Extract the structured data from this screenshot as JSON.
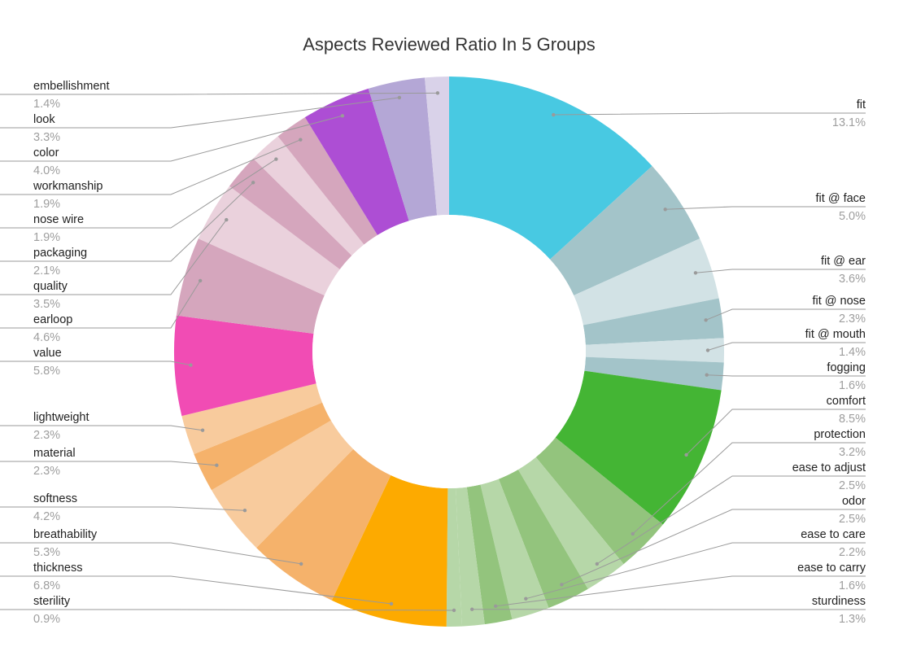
{
  "chart_data": {
    "type": "pie",
    "donut": true,
    "title": "Aspects Reviewed Ratio In 5 Groups",
    "slices": [
      {
        "label": "fit",
        "value": 13.1,
        "display": "13.1%",
        "color": "#48c9e2"
      },
      {
        "label": "fit @ face",
        "value": 5.0,
        "display": "5.0%",
        "color": "#a3c4c9"
      },
      {
        "label": "fit @ ear",
        "value": 3.6,
        "display": "3.6%",
        "color": "#d2e2e5"
      },
      {
        "label": "fit @ nose",
        "value": 2.3,
        "display": "2.3%",
        "color": "#a3c4c9"
      },
      {
        "label": "fit @ mouth",
        "value": 1.4,
        "display": "1.4%",
        "color": "#d2e2e5"
      },
      {
        "label": "fogging",
        "value": 1.6,
        "display": "1.6%",
        "color": "#a3c4c9"
      },
      {
        "label": "comfort",
        "value": 8.5,
        "display": "8.5%",
        "color": "#44b534"
      },
      {
        "label": "protection",
        "value": 3.2,
        "display": "3.2%",
        "color": "#93c47d"
      },
      {
        "label": "ease to adjust",
        "value": 2.5,
        "display": "2.5%",
        "color": "#b6d7a8"
      },
      {
        "label": "odor",
        "value": 2.5,
        "display": "2.5%",
        "color": "#93c47d"
      },
      {
        "label": "ease to care",
        "value": 2.2,
        "display": "2.2%",
        "color": "#b6d7a8"
      },
      {
        "label": "ease to carry",
        "value": 1.6,
        "display": "1.6%",
        "color": "#93c47d"
      },
      {
        "label": "sturdiness",
        "value": 1.3,
        "display": "1.3%",
        "color": "#b6d7a8"
      },
      {
        "label": "sterility",
        "value": 0.9,
        "display": "0.9%",
        "color": "#b6d7a8"
      },
      {
        "label": "thickness",
        "value": 6.8,
        "display": "6.8%",
        "color": "#fdaa00"
      },
      {
        "label": "breathability",
        "value": 5.3,
        "display": "5.3%",
        "color": "#f5b26b"
      },
      {
        "label": "softness",
        "value": 4.2,
        "display": "4.2%",
        "color": "#f8cb9d"
      },
      {
        "label": "material",
        "value": 2.3,
        "display": "2.3%",
        "color": "#f5b26b"
      },
      {
        "label": "lightweight",
        "value": 2.3,
        "display": "2.3%",
        "color": "#f8cb9d"
      },
      {
        "label": "value",
        "value": 5.8,
        "display": "5.8%",
        "color": "#f14cb4"
      },
      {
        "label": "earloop",
        "value": 4.6,
        "display": "4.6%",
        "color": "#d5a6bd"
      },
      {
        "label": "quality",
        "value": 3.5,
        "display": "3.5%",
        "color": "#ead1dc"
      },
      {
        "label": "packaging",
        "value": 2.1,
        "display": "2.1%",
        "color": "#d5a6bd"
      },
      {
        "label": "nose wire",
        "value": 1.9,
        "display": "1.9%",
        "color": "#ead1dc"
      },
      {
        "label": "workmanship",
        "value": 1.9,
        "display": "1.9%",
        "color": "#d5a6bd"
      },
      {
        "label": "color",
        "value": 4.0,
        "display": "4.0%",
        "color": "#ad4ed4"
      },
      {
        "label": "look",
        "value": 3.3,
        "display": "3.3%",
        "color": "#b4a7d6"
      },
      {
        "label": "embellishment",
        "value": 1.4,
        "display": "1.4%",
        "color": "#d9d2e9"
      }
    ]
  }
}
